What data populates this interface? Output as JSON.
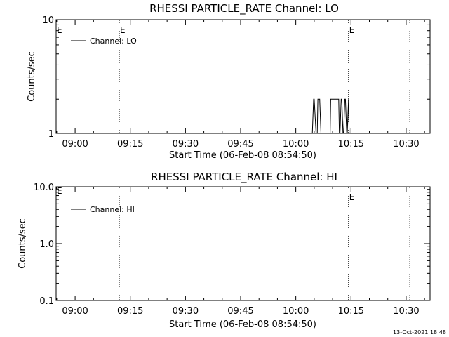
{
  "chart_data": [
    {
      "type": "line",
      "title": "RHESSI PARTICLE_RATE Channel: LO",
      "xlabel": "Start Time (06-Feb-08 08:54:50)",
      "ylabel": "Counts/sec",
      "yscale": "log",
      "xlim": [
        "08:54:50",
        "10:36:30"
      ],
      "ylim": [
        1,
        10
      ],
      "x_ticks": [
        "09:00",
        "09:15",
        "09:30",
        "09:45",
        "10:00",
        "10:15",
        "10:30"
      ],
      "y_ticks": [
        "1",
        "10"
      ],
      "grid": false,
      "legend": {
        "placement": "top-left",
        "entries": [
          "Channel: LO"
        ]
      },
      "vertical_markers": [
        {
          "x": "09:12:00",
          "style": "dotted",
          "label": "E"
        },
        {
          "x": "10:14:20",
          "style": "dotted",
          "label": "E"
        },
        {
          "x": "10:31:00",
          "style": "dotted",
          "label": ""
        }
      ],
      "edge_label": "E",
      "series": [
        {
          "name": "Channel: LO",
          "x": [
            "10:04:30",
            "10:04:50",
            "10:05:00",
            "10:05:30",
            "10:05:50",
            "10:06:00",
            "10:06:30",
            "10:06:50",
            "10:09:20",
            "10:09:30",
            "10:11:40",
            "10:11:50",
            "10:12:00",
            "10:12:20",
            "10:12:30",
            "10:12:50",
            "10:13:00",
            "10:13:20",
            "10:13:30",
            "10:13:50",
            "10:14:00",
            "10:14:20",
            "10:14:30",
            "10:15:00"
          ],
          "y": [
            1,
            2,
            2,
            1,
            1,
            2,
            2,
            1,
            1,
            2,
            2,
            1,
            1,
            2,
            2,
            1,
            1,
            2,
            2,
            1,
            1,
            2,
            1,
            1
          ]
        }
      ]
    },
    {
      "type": "line",
      "title": "RHESSI PARTICLE_RATE Channel: HI",
      "xlabel": "Start Time (06-Feb-08 08:54:50)",
      "ylabel": "Counts/sec",
      "yscale": "log",
      "xlim": [
        "08:54:50",
        "10:36:30"
      ],
      "ylim": [
        0.1,
        10.0
      ],
      "x_ticks": [
        "09:00",
        "09:15",
        "09:30",
        "09:45",
        "10:00",
        "10:15",
        "10:30"
      ],
      "y_ticks": [
        "0.1",
        "1.0",
        "10.0"
      ],
      "grid": false,
      "legend": {
        "placement": "top-left",
        "entries": [
          "Channel: HI"
        ]
      },
      "vertical_markers": [
        {
          "x": "09:12:00",
          "style": "dotted",
          "label": ""
        },
        {
          "x": "10:14:20",
          "style": "dotted",
          "label": "E"
        },
        {
          "x": "10:31:00",
          "style": "dotted",
          "label": ""
        }
      ],
      "edge_label": "E",
      "series": [
        {
          "name": "Channel: HI",
          "x": [],
          "y": []
        }
      ]
    }
  ],
  "footer": {
    "timestamp": "13-Oct-2021 18:48"
  }
}
